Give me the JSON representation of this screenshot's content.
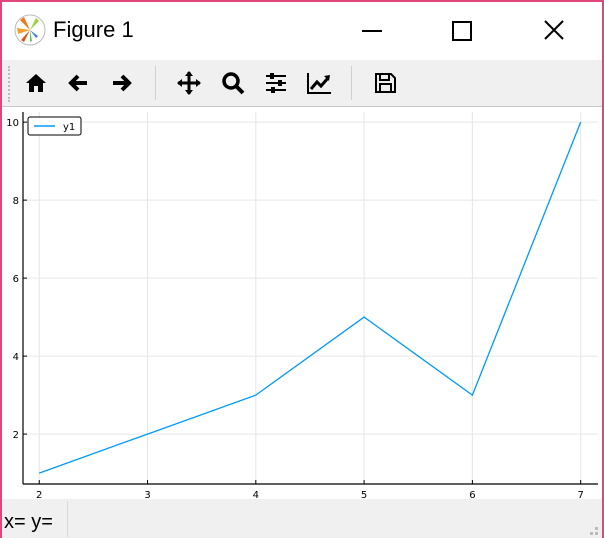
{
  "window": {
    "title": "Figure 1",
    "border_color": "#e0457b"
  },
  "toolbar": {
    "buttons": [
      {
        "name": "home",
        "icon": "home-icon"
      },
      {
        "name": "back",
        "icon": "arrow-left-icon"
      },
      {
        "name": "forward",
        "icon": "arrow-right-icon"
      },
      {
        "name": "pan",
        "icon": "move-icon"
      },
      {
        "name": "zoom",
        "icon": "magnifier-icon"
      },
      {
        "name": "configure-subplots",
        "icon": "sliders-icon"
      },
      {
        "name": "edit-axis",
        "icon": "line-chart-icon"
      },
      {
        "name": "save",
        "icon": "floppy-disk-icon"
      }
    ]
  },
  "status": {
    "coords": "x= y="
  },
  "chart_data": {
    "type": "line",
    "x": [
      2,
      3,
      4,
      5,
      6,
      7
    ],
    "series": [
      {
        "name": "y1",
        "values": [
          1,
          2,
          3,
          5,
          3,
          10
        ],
        "color": "#009af9"
      }
    ],
    "xlim": [
      1.85,
      7.16
    ],
    "ylim": [
      0.72,
      10.26
    ],
    "xticks": [
      2,
      3,
      4,
      5,
      6,
      7
    ],
    "yticks": [
      2,
      4,
      6,
      8,
      10
    ],
    "xtick_labels": [
      "2",
      "3",
      "4",
      "5",
      "6",
      "7"
    ],
    "ytick_labels": [
      "2",
      "4",
      "6",
      "8",
      "10"
    ],
    "grid": true,
    "legend": "top-left",
    "title": "",
    "xlabel": "",
    "ylabel": ""
  }
}
